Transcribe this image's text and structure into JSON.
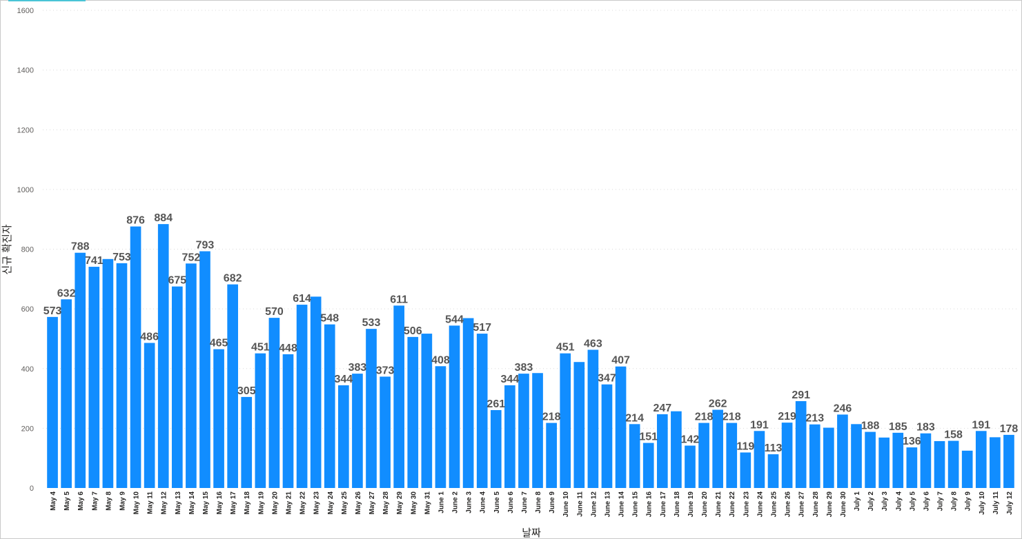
{
  "chart_data": {
    "type": "bar",
    "xlabel": "날짜",
    "ylabel": "신규 확진자",
    "ylim": [
      0,
      1600
    ],
    "yticks": [
      0,
      200,
      400,
      600,
      800,
      1000,
      1200,
      1400,
      1600
    ],
    "grid": true,
    "bar_color": "#118dff",
    "categories": [
      "May 4",
      "May 5",
      "May 6",
      "May 7",
      "May 8",
      "May 9",
      "May 10",
      "May 11",
      "May 12",
      "May 13",
      "May 14",
      "May 15",
      "May 16",
      "May 17",
      "May 18",
      "May 19",
      "May 20",
      "May 21",
      "May 22",
      "May 23",
      "May 24",
      "May 25",
      "May 26",
      "May 27",
      "May 28",
      "May 29",
      "May 30",
      "May 31",
      "June 1",
      "June 2",
      "June 3",
      "June 4",
      "June 5",
      "June 6",
      "June 7",
      "June 8",
      "June 9",
      "June 10",
      "June 11",
      "June 12",
      "June 13",
      "June 14",
      "June 15",
      "June 16",
      "June 17",
      "June 18",
      "June 19",
      "June 20",
      "June 21",
      "June 22",
      "June 23",
      "June 24",
      "June 25",
      "June 26",
      "June 27",
      "June 28",
      "June 29",
      "June 30",
      "July 1",
      "July 2",
      "July 3",
      "July 4",
      "July 5",
      "July 6",
      "July 7",
      "July 8",
      "July 9",
      "July 10",
      "July 11",
      "July 12"
    ],
    "values": [
      573,
      632,
      788,
      741,
      767,
      753,
      876,
      486,
      884,
      675,
      752,
      793,
      465,
      682,
      305,
      451,
      570,
      448,
      614,
      641,
      548,
      344,
      383,
      533,
      373,
      611,
      506,
      517,
      408,
      544,
      569,
      517,
      261,
      344,
      383,
      385,
      218,
      451,
      422,
      463,
      347,
      407,
      214,
      151,
      247,
      257,
      142,
      218,
      262,
      218,
      119,
      191,
      113,
      219,
      291,
      213,
      202,
      246,
      214,
      188,
      169,
      185,
      136,
      183,
      157,
      158,
      125,
      191,
      170,
      178
    ],
    "data_labels": [
      "573",
      "632",
      "788",
      "741",
      "",
      "753",
      "876",
      "486",
      "884",
      "675",
      "752",
      "793",
      "465",
      "682",
      "305",
      "451",
      "570",
      "448",
      "614",
      "",
      "548",
      "344",
      "383",
      "533",
      "373",
      "611",
      "506",
      "",
      "408",
      "544",
      "",
      "517",
      "261",
      "344",
      "383",
      "",
      "218",
      "451",
      "",
      "463",
      "347",
      "407",
      "214",
      "151",
      "247",
      "",
      "142",
      "218",
      "262",
      "218",
      "119",
      "191",
      "113",
      "219",
      "291",
      "213",
      "",
      "246",
      "",
      "188",
      "",
      "185",
      "136",
      "183",
      "",
      "158",
      "",
      "191",
      "",
      "178"
    ]
  }
}
